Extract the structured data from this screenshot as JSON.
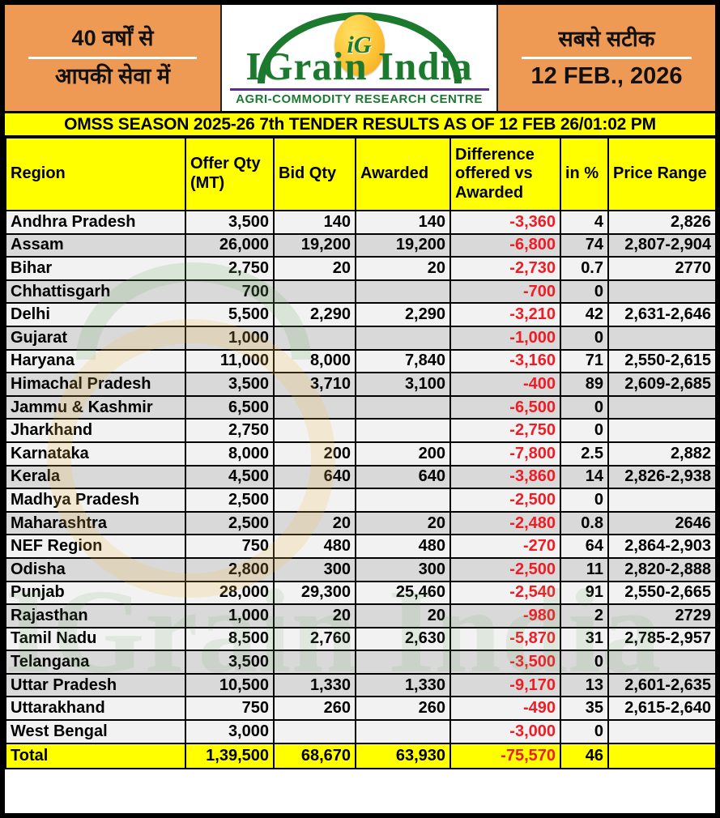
{
  "masthead": {
    "left_tagline_line1": "40 वर्षों से",
    "left_tagline_line2": "आपकी सेवा में",
    "logo_monogram": "iG",
    "logo_title": "IGrain India",
    "logo_subtitle": "AGRI-COMMODITY RESEARCH CENTRE",
    "right_tagline": "सबसे सटीक",
    "report_date": "12 FEB., 2026"
  },
  "banner": {
    "title": "OMSS SEASON 2025-26 7th TENDER RESULTS AS OF 12 FEB 26/01:02 PM"
  },
  "colors": {
    "panel_orange": "#EE9A54",
    "highlight_yellow": "#FFFF00",
    "negative_red": "#EE1C25",
    "brand_green": "#1B7A2E",
    "brand_purple": "#5C2D91",
    "row_gray": "#D9D9D9",
    "row_white": "#F2F2F2"
  },
  "table": {
    "columns": [
      "Region",
      "Offer Qty (MT)",
      "Bid Qty",
      "Awarded",
      "Difference offered vs Awarded",
      "in %",
      "Price Range"
    ],
    "rows": [
      {
        "region": "Andhra Pradesh",
        "offer": "3,500",
        "bid": "140",
        "awarded": "140",
        "diff": "-3,360",
        "pct": "4",
        "price": "2,826",
        "shade": "white"
      },
      {
        "region": "Assam",
        "offer": "26,000",
        "bid": "19,200",
        "awarded": "19,200",
        "diff": "-6,800",
        "pct": "74",
        "price": "2,807-2,904",
        "shade": "gray"
      },
      {
        "region": "Bihar",
        "offer": "2,750",
        "bid": "20",
        "awarded": "20",
        "diff": "-2,730",
        "pct": "0.7",
        "price": "2770",
        "shade": "white"
      },
      {
        "region": "Chhattisgarh",
        "offer": "700",
        "bid": "",
        "awarded": "",
        "diff": "-700",
        "pct": "0",
        "price": "",
        "shade": "gray"
      },
      {
        "region": "Delhi",
        "offer": "5,500",
        "bid": "2,290",
        "awarded": "2,290",
        "diff": "-3,210",
        "pct": "42",
        "price": "2,631-2,646",
        "shade": "white"
      },
      {
        "region": "Gujarat",
        "offer": "1,000",
        "bid": "",
        "awarded": "",
        "diff": "-1,000",
        "pct": "0",
        "price": "",
        "shade": "gray"
      },
      {
        "region": "Haryana",
        "offer": "11,000",
        "bid": "8,000",
        "awarded": "7,840",
        "diff": "-3,160",
        "pct": "71",
        "price": "2,550-2,615",
        "shade": "white"
      },
      {
        "region": "Himachal Pradesh",
        "offer": "3,500",
        "bid": "3,710",
        "awarded": "3,100",
        "diff": "-400",
        "pct": "89",
        "price": "2,609-2,685",
        "shade": "gray"
      },
      {
        "region": "Jammu & Kashmir",
        "offer": "6,500",
        "bid": "",
        "awarded": "",
        "diff": "-6,500",
        "pct": "0",
        "price": "",
        "shade": "gray"
      },
      {
        "region": "Jharkhand",
        "offer": "2,750",
        "bid": "",
        "awarded": "",
        "diff": "-2,750",
        "pct": "0",
        "price": "",
        "shade": "white"
      },
      {
        "region": "Karnataka",
        "offer": "8,000",
        "bid": "200",
        "awarded": "200",
        "diff": "-7,800",
        "pct": "2.5",
        "price": "2,882",
        "shade": "white"
      },
      {
        "region": "Kerala",
        "offer": "4,500",
        "bid": "640",
        "awarded": "640",
        "diff": "-3,860",
        "pct": "14",
        "price": "2,826-2,938",
        "shade": "gray"
      },
      {
        "region": "Madhya Pradesh",
        "offer": "2,500",
        "bid": "",
        "awarded": "",
        "diff": "-2,500",
        "pct": "0",
        "price": "",
        "shade": "white"
      },
      {
        "region": "Maharashtra",
        "offer": "2,500",
        "bid": "20",
        "awarded": "20",
        "diff": "-2,480",
        "pct": "0.8",
        "price": "2646",
        "shade": "gray"
      },
      {
        "region": "NEF Region",
        "offer": "750",
        "bid": "480",
        "awarded": "480",
        "diff": "-270",
        "pct": "64",
        "price": "2,864-2,903",
        "shade": "white"
      },
      {
        "region": "Odisha",
        "offer": "2,800",
        "bid": "300",
        "awarded": "300",
        "diff": "-2,500",
        "pct": "11",
        "price": "2,820-2,888",
        "shade": "gray"
      },
      {
        "region": "Punjab",
        "offer": "28,000",
        "bid": "29,300",
        "awarded": "25,460",
        "diff": "-2,540",
        "pct": "91",
        "price": "2,550-2,665",
        "shade": "white"
      },
      {
        "region": "Rajasthan",
        "offer": "1,000",
        "bid": "20",
        "awarded": "20",
        "diff": "-980",
        "pct": "2",
        "price": "2729",
        "shade": "gray"
      },
      {
        "region": "Tamil Nadu",
        "offer": "8,500",
        "bid": "2,760",
        "awarded": "2,630",
        "diff": "-5,870",
        "pct": "31",
        "price": "2,785-2,957",
        "shade": "white"
      },
      {
        "region": "Telangana",
        "offer": "3,500",
        "bid": "",
        "awarded": "",
        "diff": "-3,500",
        "pct": "0",
        "price": "",
        "shade": "gray"
      },
      {
        "region": "Uttar Pradesh",
        "offer": "10,500",
        "bid": "1,330",
        "awarded": "1,330",
        "diff": "-9,170",
        "pct": "13",
        "price": "2,601-2,635",
        "shade": "gray"
      },
      {
        "region": "Uttarakhand",
        "offer": "750",
        "bid": "260",
        "awarded": "260",
        "diff": "-490",
        "pct": "35",
        "price": "2,615-2,640",
        "shade": "white"
      },
      {
        "region": "West Bengal",
        "offer": "3,000",
        "bid": "",
        "awarded": "",
        "diff": "-3,000",
        "pct": "0",
        "price": "",
        "shade": "white"
      }
    ],
    "total": {
      "region": "Total",
      "offer": "1,39,500",
      "bid": "68,670",
      "awarded": "63,930",
      "diff": "-75,570",
      "pct": "46",
      "price": ""
    }
  },
  "watermark_text": "IGrain India"
}
